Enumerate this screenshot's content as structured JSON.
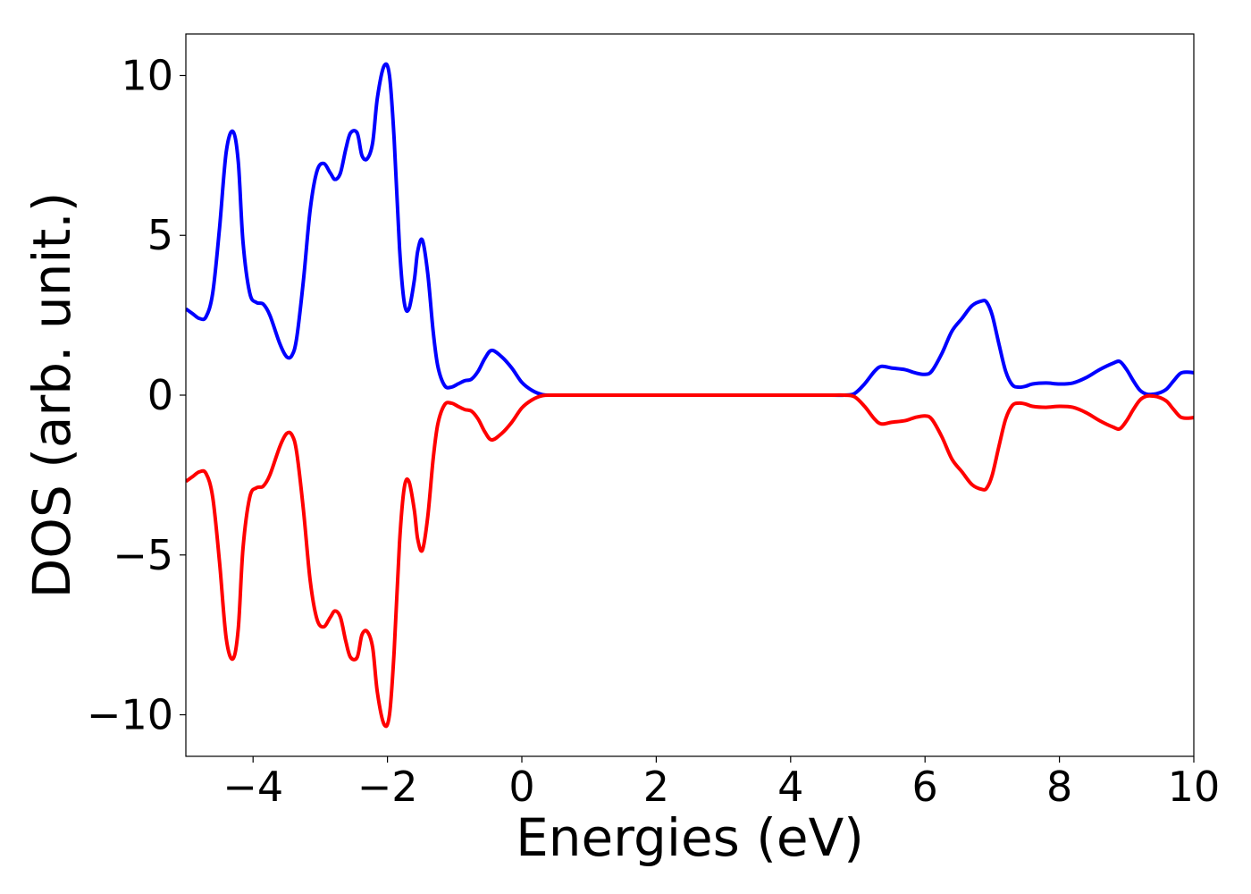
{
  "chart_data": {
    "type": "line",
    "title": "",
    "xlabel": "Energies (eV)",
    "ylabel": "DOS (arb. unit.)",
    "xlim": [
      -5,
      10
    ],
    "ylim": [
      -11.3,
      11.3
    ],
    "grid": false,
    "legend": "none",
    "x_ticks": [
      -4,
      -2,
      0,
      2,
      4,
      6,
      8,
      10
    ],
    "x_tick_labels": [
      "−4",
      "−2",
      "0",
      "2",
      "4",
      "6",
      "8",
      "10"
    ],
    "y_ticks": [
      -10,
      -5,
      0,
      5,
      10
    ],
    "y_tick_labels": [
      "−10",
      "−5",
      "0",
      "5",
      "10"
    ],
    "series": [
      {
        "color": "#0000ff",
        "x": [
          -5.0,
          -4.9,
          -4.8,
          -4.7,
          -4.6,
          -4.5,
          -4.4,
          -4.3,
          -4.22,
          -4.15,
          -4.05,
          -3.95,
          -3.85,
          -3.75,
          -3.6,
          -3.5,
          -3.42,
          -3.35,
          -3.25,
          -3.15,
          -3.05,
          -2.95,
          -2.85,
          -2.78,
          -2.7,
          -2.62,
          -2.55,
          -2.45,
          -2.38,
          -2.3,
          -2.22,
          -2.15,
          -2.05,
          -1.97,
          -1.9,
          -1.82,
          -1.75,
          -1.68,
          -1.6,
          -1.55,
          -1.48,
          -1.4,
          -1.32,
          -1.25,
          -1.15,
          -1.05,
          -0.95,
          -0.85,
          -0.75,
          -0.65,
          -0.55,
          -0.45,
          -0.3,
          -0.15,
          0.0,
          0.15,
          0.3,
          0.45,
          0.6,
          0.75,
          1.0,
          2.0,
          3.0,
          4.0,
          4.6,
          4.8,
          4.95,
          5.1,
          5.25,
          5.35,
          5.5,
          5.7,
          5.85,
          6.0,
          6.1,
          6.25,
          6.4,
          6.55,
          6.7,
          6.85,
          6.92,
          7.0,
          7.1,
          7.2,
          7.3,
          7.4,
          7.5,
          7.6,
          7.8,
          8.0,
          8.2,
          8.4,
          8.6,
          8.8,
          8.9,
          9.0,
          9.1,
          9.2,
          9.3,
          9.4,
          9.5,
          9.6,
          9.7,
          9.8,
          9.9,
          10.0
        ],
        "y": [
          2.7,
          2.55,
          2.4,
          2.45,
          3.2,
          5.2,
          7.6,
          8.25,
          7.3,
          4.8,
          3.2,
          2.9,
          2.85,
          2.5,
          1.6,
          1.2,
          1.25,
          1.8,
          3.6,
          5.8,
          7.0,
          7.25,
          6.95,
          6.75,
          6.95,
          7.7,
          8.2,
          8.2,
          7.5,
          7.4,
          7.9,
          9.3,
          10.3,
          10.0,
          8.0,
          4.6,
          2.9,
          2.7,
          3.6,
          4.5,
          4.85,
          3.8,
          2.0,
          0.9,
          0.3,
          0.25,
          0.35,
          0.45,
          0.5,
          0.75,
          1.15,
          1.4,
          1.2,
          0.85,
          0.4,
          0.15,
          0.02,
          0.0,
          0.0,
          0.0,
          0.0,
          0.0,
          0.0,
          0.0,
          0.0,
          0.0,
          0.05,
          0.35,
          0.75,
          0.9,
          0.85,
          0.8,
          0.7,
          0.65,
          0.75,
          1.3,
          2.0,
          2.4,
          2.8,
          2.95,
          2.9,
          2.5,
          1.6,
          0.75,
          0.32,
          0.25,
          0.28,
          0.35,
          0.38,
          0.35,
          0.38,
          0.55,
          0.8,
          1.0,
          1.05,
          0.8,
          0.45,
          0.15,
          0.03,
          0.03,
          0.08,
          0.2,
          0.45,
          0.68,
          0.72,
          0.7
        ]
      },
      {
        "color": "#ff0000",
        "x": [
          -5.0,
          -4.9,
          -4.8,
          -4.7,
          -4.6,
          -4.5,
          -4.4,
          -4.3,
          -4.22,
          -4.15,
          -4.05,
          -3.95,
          -3.85,
          -3.75,
          -3.6,
          -3.5,
          -3.42,
          -3.35,
          -3.25,
          -3.15,
          -3.05,
          -2.95,
          -2.85,
          -2.78,
          -2.7,
          -2.62,
          -2.55,
          -2.45,
          -2.38,
          -2.3,
          -2.22,
          -2.15,
          -2.05,
          -1.97,
          -1.9,
          -1.82,
          -1.75,
          -1.68,
          -1.6,
          -1.55,
          -1.48,
          -1.4,
          -1.32,
          -1.25,
          -1.15,
          -1.05,
          -0.95,
          -0.85,
          -0.75,
          -0.65,
          -0.55,
          -0.45,
          -0.3,
          -0.15,
          0.0,
          0.15,
          0.3,
          0.45,
          0.6,
          0.75,
          1.0,
          2.0,
          3.0,
          4.0,
          4.6,
          4.8,
          4.95,
          5.1,
          5.25,
          5.35,
          5.5,
          5.7,
          5.85,
          6.0,
          6.1,
          6.25,
          6.4,
          6.55,
          6.7,
          6.85,
          6.92,
          7.0,
          7.1,
          7.2,
          7.3,
          7.4,
          7.5,
          7.6,
          7.8,
          8.0,
          8.2,
          8.4,
          8.6,
          8.8,
          8.9,
          9.0,
          9.1,
          9.2,
          9.3,
          9.4,
          9.5,
          9.6,
          9.7,
          9.8,
          9.9,
          10.0
        ],
        "y": [
          -2.7,
          -2.55,
          -2.4,
          -2.45,
          -3.2,
          -5.2,
          -7.6,
          -8.25,
          -7.3,
          -4.8,
          -3.2,
          -2.9,
          -2.85,
          -2.5,
          -1.6,
          -1.2,
          -1.25,
          -1.8,
          -3.6,
          -5.8,
          -7.0,
          -7.25,
          -6.95,
          -6.75,
          -6.95,
          -7.7,
          -8.2,
          -8.2,
          -7.5,
          -7.4,
          -7.9,
          -9.3,
          -10.3,
          -10.0,
          -8.0,
          -4.6,
          -2.9,
          -2.7,
          -3.6,
          -4.5,
          -4.85,
          -3.8,
          -2.0,
          -0.9,
          -0.3,
          -0.25,
          -0.35,
          -0.45,
          -0.5,
          -0.75,
          -1.15,
          -1.4,
          -1.2,
          -0.85,
          -0.4,
          -0.15,
          -0.02,
          0.0,
          0.0,
          0.0,
          0.0,
          0.0,
          0.0,
          0.0,
          0.0,
          0.0,
          -0.05,
          -0.35,
          -0.75,
          -0.9,
          -0.85,
          -0.8,
          -0.7,
          -0.65,
          -0.75,
          -1.3,
          -2.0,
          -2.4,
          -2.8,
          -2.95,
          -2.9,
          -2.5,
          -1.6,
          -0.75,
          -0.32,
          -0.25,
          -0.28,
          -0.35,
          -0.38,
          -0.35,
          -0.38,
          -0.55,
          -0.8,
          -1.0,
          -1.05,
          -0.8,
          -0.45,
          -0.15,
          -0.03,
          -0.03,
          -0.08,
          -0.2,
          -0.45,
          -0.68,
          -0.72,
          -0.7
        ]
      }
    ]
  }
}
